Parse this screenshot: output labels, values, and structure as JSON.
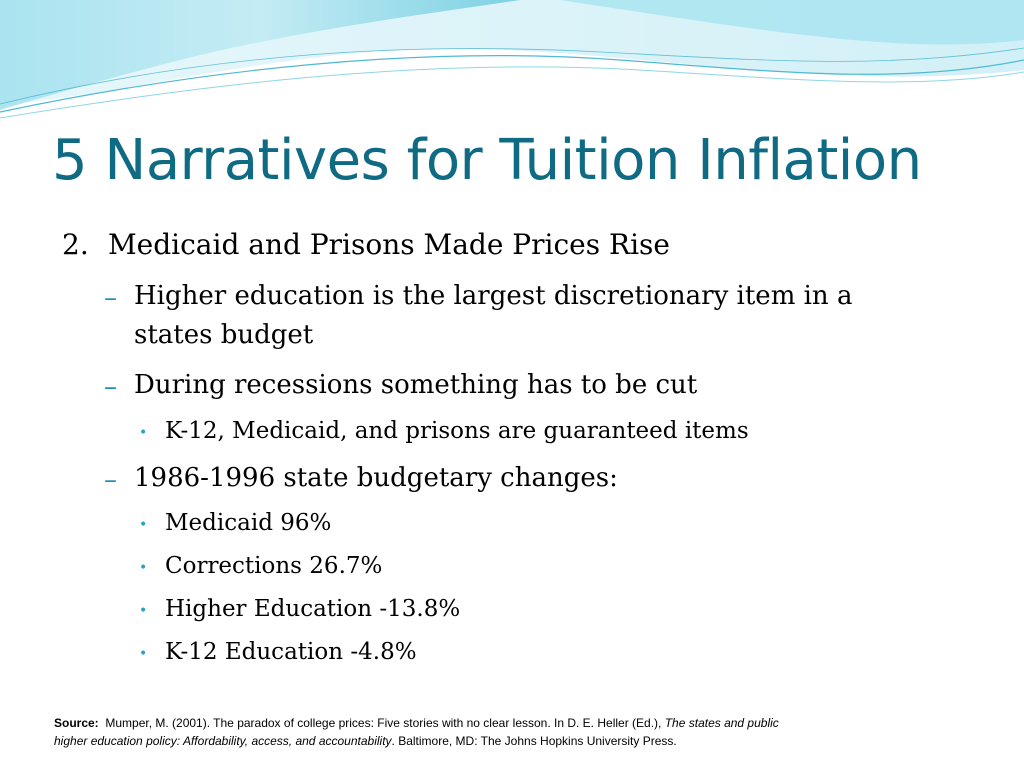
{
  "title": "5 Narratives for Tuition Inflation",
  "item_number": "2.",
  "item_heading": "Medicaid and Prisons Made Prices Rise",
  "dash_marker": "–",
  "bullet_marker": "•",
  "points": [
    {
      "line1": "Higher education is the largest discretionary item in a",
      "line2": "states budget"
    },
    {
      "line1": "During recessions something has to be cut"
    },
    {
      "line1": "1986-1996 state budgetary changes:"
    }
  ],
  "sub_points": [
    "K-12, Medicaid, and prisons are guaranteed items",
    "Medicaid  96%",
    "Corrections  26.7%",
    "Higher Education -13.8%",
    "K-12 Education -4.8%"
  ],
  "source": {
    "label": "Source:",
    "text1": "Mumper, M. (2001). The paradox of college prices: Five stories with no clear lesson.  In D. E. Heller (Ed.),",
    "italic1": "The states and public",
    "italic2": "higher education policy: Affordability, access, and accountability",
    "text2": ". Baltimore, MD: The Johns Hopkins University Press."
  },
  "colors": {
    "title": "#0f6a84",
    "accent": "#1b8fb3",
    "wave_light": "#cdeef4",
    "wave_mid": "#8fd6e6"
  }
}
